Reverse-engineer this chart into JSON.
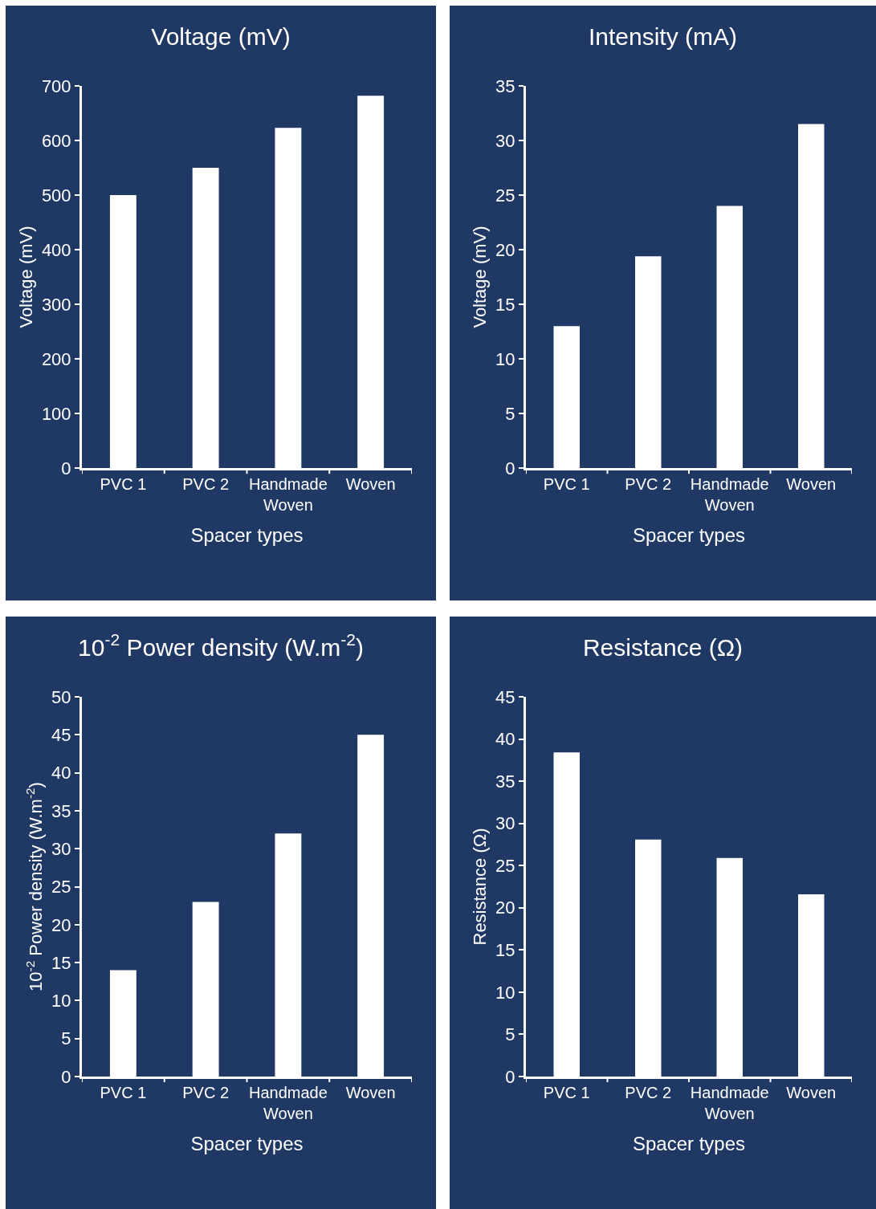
{
  "chart_data": [
    {
      "type": "bar",
      "title": "Voltage (mV)",
      "xlabel": "Spacer types",
      "ylabel": "Voltage (mV)",
      "categories": [
        "PVC 1",
        "PVC 2",
        "Handmade Woven",
        "Woven"
      ],
      "values": [
        500,
        550,
        623,
        682
      ],
      "color": "#ffffff",
      "ylim": [
        0,
        700
      ],
      "yticks": [
        0,
        100,
        200,
        300,
        400,
        500,
        600,
        700
      ],
      "grid": false
    },
    {
      "type": "bar",
      "title": "Intensity (mA)",
      "xlabel": "Spacer types",
      "ylabel": "Voltage (mV)",
      "categories": [
        "PVC 1",
        "PVC 2",
        "Handmade Woven",
        "Woven"
      ],
      "values": [
        13,
        19.4,
        24,
        31.5
      ],
      "color": "#ffffff",
      "ylim": [
        0,
        35
      ],
      "yticks": [
        0,
        5,
        10,
        15,
        20,
        25,
        30,
        35
      ],
      "grid": false
    },
    {
      "type": "bar",
      "title": "10$^{-2}$ Power density (W.m$^{-2}$)",
      "xlabel": "Spacer types",
      "ylabel": "10$^{-2}$ Power density (W.m$^{-2}$)",
      "categories": [
        "PVC 1",
        "PVC 2",
        "Handmade Woven",
        "Woven"
      ],
      "values": [
        14,
        23,
        32,
        45
      ],
      "color": "#ffffff",
      "ylim": [
        0,
        50
      ],
      "yticks": [
        0,
        5,
        10,
        15,
        20,
        25,
        30,
        35,
        40,
        45,
        50
      ],
      "grid": false
    },
    {
      "type": "bar",
      "title": "Resistance (Ω)",
      "xlabel": "Spacer types",
      "ylabel": "Resistance (Ω)",
      "categories": [
        "PVC 1",
        "PVC 2",
        "Handmade Woven",
        "Woven"
      ],
      "values": [
        38.4,
        28.1,
        25.9,
        21.6
      ],
      "color": "#ffffff",
      "ylim": [
        0,
        45
      ],
      "yticks": [
        0,
        5,
        10,
        15,
        20,
        25,
        30,
        35,
        40,
        45
      ],
      "grid": false
    }
  ]
}
